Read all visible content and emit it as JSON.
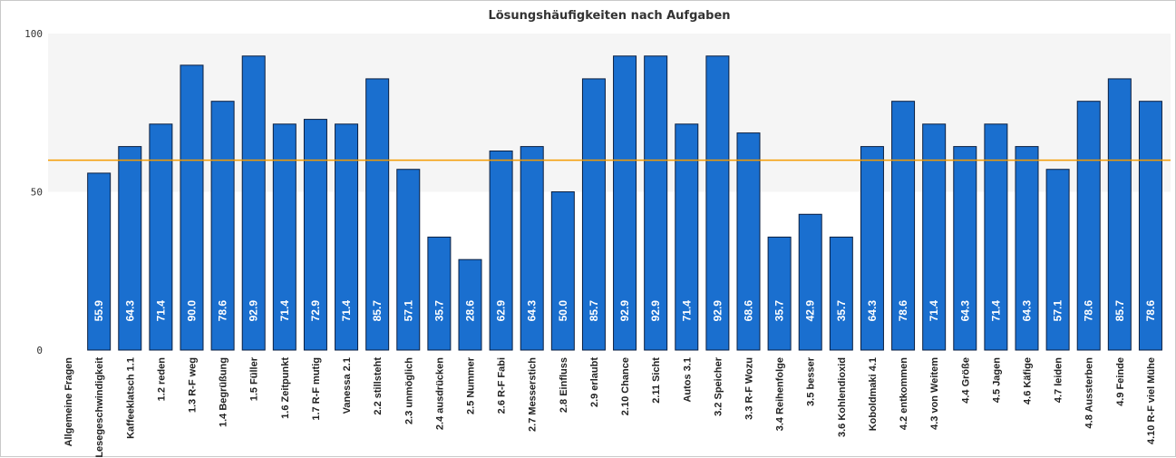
{
  "chart_data": {
    "type": "bar",
    "title": "Lösungshäufigkeiten nach Aufgaben",
    "xlabel": "",
    "ylabel": "",
    "ylim": [
      0,
      100
    ],
    "yticks": [
      0,
      50,
      100
    ],
    "grid": false,
    "legend": "none",
    "reference_line": 60,
    "colors": {
      "bar": "#1a6fcf",
      "bar_border": "#0b1f40",
      "reference_line": "#f59b00",
      "plot_background": "#f5f5f5"
    },
    "categories": [
      "Allgemeine Fragen",
      "Lesegeschwindigkeit",
      "Kaffeeklatsch 1.1",
      "1.2 reden",
      "1.3 R-F weg",
      "1.4 Begrüßung",
      "1.5 Füller",
      "1.6 Zeitpunkt",
      "1.7 R-F mutig",
      "Vanessa 2.1",
      "2.2 stillsteht",
      "2.3 unmöglich",
      "2.4 ausdrücken",
      "2.5 Nummer",
      "2.6 R-F Fabi",
      "2.7 Messerstich",
      "2.8 Einfluss",
      "2.9 erlaubt",
      "2.10 Chance",
      "2.11 Sicht",
      "Autos 3.1",
      "3.2 Speicher",
      "3.3 R-F Wozu",
      "3.4 Reihenfolge",
      "3.5 besser",
      "3.6 Kohlendioxid",
      "Koboldmaki 4.1",
      "4.2 entkommen",
      "4.3 von Weitem",
      "4.4 Größe",
      "4.5 Jagen",
      "4.6 Käfige",
      "4.7 leiden",
      "4.8 Aussterben",
      "4.9 Feinde",
      "4.10 R-F viel Mühe"
    ],
    "values": [
      null,
      55.9,
      64.3,
      71.4,
      90.0,
      78.6,
      92.9,
      71.4,
      72.9,
      71.4,
      85.7,
      57.1,
      35.7,
      28.6,
      62.9,
      64.3,
      50.0,
      85.7,
      92.9,
      92.9,
      71.4,
      92.9,
      68.6,
      35.7,
      42.9,
      35.7,
      64.3,
      78.6,
      71.4,
      64.3,
      71.4,
      64.3,
      57.1,
      78.6,
      85.7,
      78.6
    ]
  }
}
